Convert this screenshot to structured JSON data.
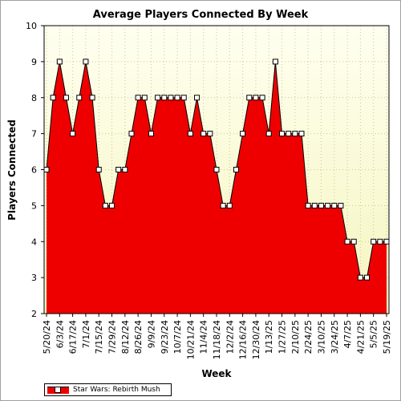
{
  "chart_data": {
    "type": "area",
    "title": "Average Players Connected By Week",
    "xlabel": "Week",
    "ylabel": "Players Connected",
    "ylim": [
      2,
      10
    ],
    "y_ticks": [
      2,
      3,
      4,
      5,
      6,
      7,
      8,
      9,
      10
    ],
    "grid": true,
    "legend_position": "bottom-left",
    "x": [
      "5/20/24",
      "5/27/24",
      "6/3/24",
      "6/10/24",
      "6/17/24",
      "6/24/24",
      "7/1/24",
      "7/8/24",
      "7/15/24",
      "7/22/24",
      "7/29/24",
      "8/5/24",
      "8/12/24",
      "8/19/24",
      "8/26/24",
      "9/2/24",
      "9/9/24",
      "9/16/24",
      "9/23/24",
      "9/30/24",
      "10/7/24",
      "10/14/24",
      "10/21/24",
      "10/28/24",
      "11/4/24",
      "11/11/24",
      "11/18/24",
      "11/25/24",
      "12/2/24",
      "12/9/24",
      "12/16/24",
      "12/23/24",
      "12/30/24",
      "1/6/25",
      "1/13/25",
      "1/20/25",
      "1/27/25",
      "2/3/25",
      "2/10/25",
      "2/17/25",
      "2/24/25",
      "3/3/25",
      "3/10/25",
      "3/17/25",
      "3/24/25",
      "3/31/25",
      "4/7/25",
      "4/14/25",
      "4/21/25",
      "4/28/25",
      "5/5/25",
      "5/12/25",
      "5/19/25"
    ],
    "x_tick_labels": [
      "5/20/24",
      "6/3/24",
      "6/17/24",
      "7/1/24",
      "7/15/24",
      "7/29/24",
      "8/12/24",
      "8/26/24",
      "9/9/24",
      "9/23/24",
      "10/7/24",
      "10/21/24",
      "11/4/24",
      "11/18/24",
      "12/2/24",
      "12/16/24",
      "12/30/24",
      "1/13/25",
      "1/27/25",
      "2/10/25",
      "2/24/25",
      "3/10/25",
      "3/24/25",
      "4/7/25",
      "4/21/25",
      "5/5/25",
      "5/19/25"
    ],
    "series": [
      {
        "name": "Star Wars: Rebirth Mush",
        "color": "#ee0000",
        "values": [
          6,
          8,
          9,
          8,
          7,
          8,
          9,
          8,
          6,
          5,
          5,
          6,
          6,
          7,
          8,
          8,
          7,
          8,
          8,
          8,
          8,
          8,
          7,
          8,
          7,
          7,
          6,
          5,
          5,
          6,
          7,
          8,
          8,
          8,
          7,
          9,
          7,
          7,
          7,
          7,
          5,
          5,
          5,
          5,
          5,
          5,
          4,
          4,
          3,
          3,
          4,
          4,
          4
        ]
      }
    ],
    "colors": {
      "plot_bg_top": "#fffff0",
      "plot_bg_bottom": "#f5f5c0",
      "fill": "#ee0000",
      "line": "#000000",
      "marker_fill": "#ffffff"
    }
  }
}
